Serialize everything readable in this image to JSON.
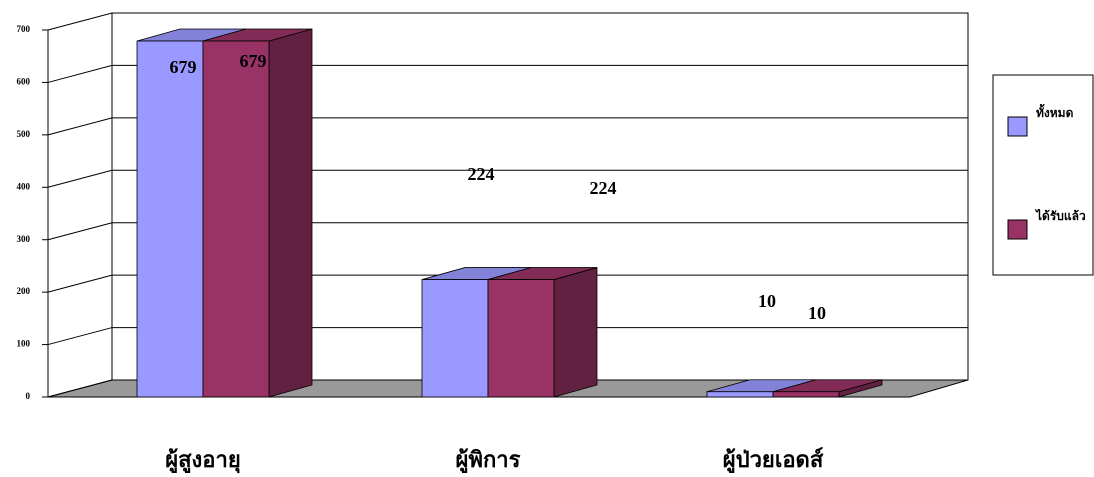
{
  "chart_data": {
    "type": "bar3d",
    "categories": [
      "ผู้สูงอายุ",
      "ผู้พิการ",
      "ผู้ป่วยเอดส์"
    ],
    "series": [
      {
        "name": "ทั้งหมด",
        "color": "#9999ff",
        "values": [
          679,
          224,
          10
        ]
      },
      {
        "name": "ได้รับแล้ว",
        "color": "#993366",
        "values": [
          679,
          224,
          10
        ]
      }
    ],
    "ylim": [
      0,
      700
    ],
    "yticks": [
      0,
      100,
      200,
      300,
      400,
      500,
      600,
      700
    ],
    "grid": true,
    "legend": "right"
  }
}
